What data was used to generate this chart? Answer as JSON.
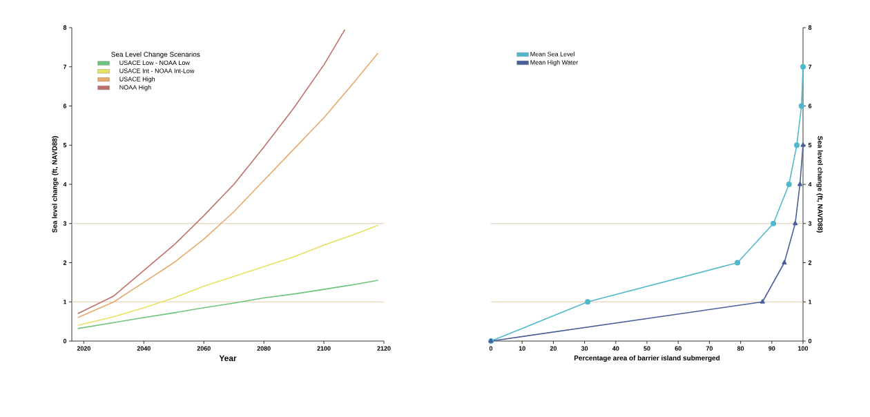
{
  "chart_data": [
    {
      "type": "line",
      "xlabel": "Year",
      "ylabel": "Sea level change (ft, NAVD88)",
      "legend_title": "Sea Level Change Scenarios",
      "legend": "top left",
      "xlim": [
        2016,
        2120
      ],
      "xticks": [
        2020,
        2040,
        2060,
        2080,
        2100,
        2120
      ],
      "ylim": [
        0,
        8
      ],
      "yticks": [
        0,
        1,
        2,
        3,
        4,
        5,
        6,
        7,
        8
      ],
      "ref_lines": [
        {
          "axis": "y",
          "value": 1,
          "color": "#e6c9a8"
        },
        {
          "axis": "y",
          "value": 3,
          "color": "#d8c8b0"
        }
      ],
      "series": [
        {
          "name": "USACE Low - NOAA Low",
          "color": "#6cc47e",
          "x": [
            2018,
            2030,
            2040,
            2050,
            2060,
            2070,
            2080,
            2090,
            2100,
            2110,
            2118
          ],
          "values": [
            0.32,
            0.47,
            0.6,
            0.72,
            0.85,
            0.97,
            1.1,
            1.2,
            1.32,
            1.44,
            1.55
          ]
        },
        {
          "name": "USACE Int - NOAA Int-Low",
          "color": "#e8e060",
          "x": [
            2018,
            2030,
            2040,
            2050,
            2060,
            2070,
            2080,
            2090,
            2100,
            2110,
            2118
          ],
          "values": [
            0.4,
            0.62,
            0.85,
            1.1,
            1.4,
            1.65,
            1.9,
            2.15,
            2.45,
            2.72,
            2.95
          ]
        },
        {
          "name": "USACE High",
          "color": "#e8a86a",
          "x": [
            2018,
            2030,
            2040,
            2050,
            2060,
            2070,
            2080,
            2090,
            2100,
            2110,
            2118
          ],
          "values": [
            0.6,
            1.0,
            1.5,
            2.0,
            2.6,
            3.3,
            4.1,
            4.9,
            5.7,
            6.6,
            7.35
          ]
        },
        {
          "name": "NOAA High",
          "color": "#c0706a",
          "x": [
            2018,
            2030,
            2040,
            2050,
            2060,
            2070,
            2080,
            2090,
            2100,
            2107
          ],
          "values": [
            0.7,
            1.15,
            1.8,
            2.45,
            3.2,
            4.0,
            4.95,
            5.95,
            7.05,
            7.95
          ]
        }
      ]
    },
    {
      "type": "line",
      "xlabel": "Percentage area of barrier island submerged",
      "y2label": "Sea level change (ft, NAVD88)",
      "legend": "top left",
      "xlim": [
        0,
        100
      ],
      "xticks": [
        0,
        10,
        20,
        30,
        40,
        50,
        60,
        70,
        80,
        90,
        100
      ],
      "y2lim": [
        0,
        8
      ],
      "y2ticks": [
        0,
        1,
        2,
        3,
        4,
        5,
        6,
        7,
        8
      ],
      "ref_lines": [
        {
          "axis": "y2",
          "value": 1,
          "color": "#e6c9a8"
        },
        {
          "axis": "y2",
          "value": 3,
          "color": "#d8c8b0"
        }
      ],
      "series": [
        {
          "name": "Mean Sea Level",
          "color": "#4fb8cc",
          "axis": "y2",
          "marker": "circle",
          "x": [
            0,
            31,
            79,
            90.5,
            95.5,
            98,
            99.5,
            100
          ],
          "values": [
            0,
            1,
            2,
            3,
            4,
            5,
            6,
            7
          ]
        },
        {
          "name": "Mean High Water",
          "color": "#4a5f9a",
          "axis": "y2",
          "marker": "triangle",
          "x": [
            0,
            87,
            94,
            97.5,
            99,
            100
          ],
          "values": [
            0,
            1,
            2,
            3,
            4,
            5
          ]
        }
      ]
    }
  ]
}
